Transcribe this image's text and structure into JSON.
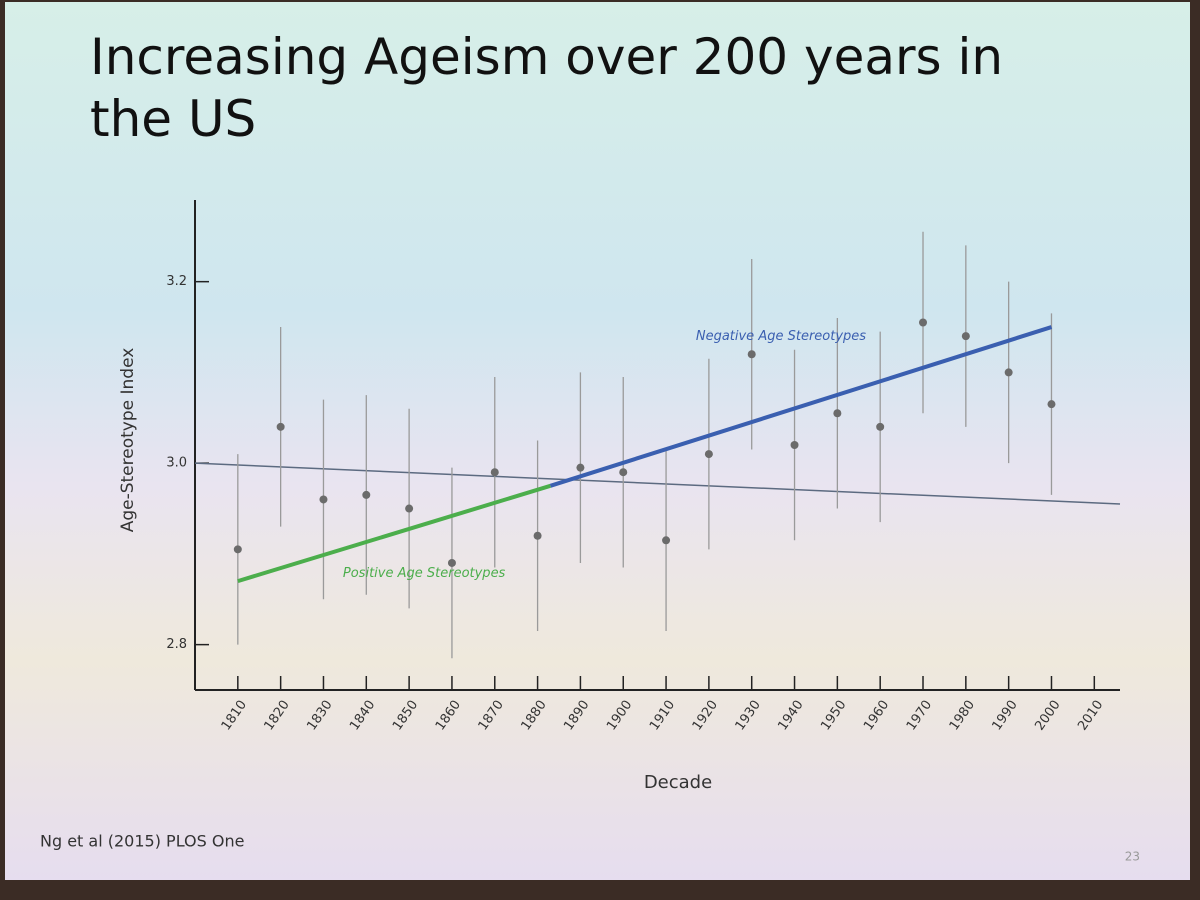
{
  "slide": {
    "title": "Increasing Ageism over 200 years in the US",
    "source": "Ng et al (2015) PLOS One",
    "page_number": 23
  },
  "chart_data": {
    "type": "errorbar-scatter",
    "x_label": "Decade",
    "y_label": "Age-Stereotype Index",
    "x": [
      1810,
      1820,
      1830,
      1840,
      1850,
      1860,
      1870,
      1880,
      1890,
      1900,
      1910,
      1920,
      1930,
      1940,
      1950,
      1960,
      1970,
      1980,
      1990,
      2000
    ],
    "values": [
      2.905,
      3.04,
      2.96,
      2.965,
      2.95,
      2.89,
      2.99,
      2.92,
      2.995,
      2.99,
      2.915,
      3.01,
      3.12,
      3.02,
      3.055,
      3.04,
      3.155,
      3.14,
      3.1,
      3.065
    ],
    "errors": [
      0.105,
      0.11,
      0.11,
      0.11,
      0.11,
      0.105,
      0.105,
      0.105,
      0.105,
      0.105,
      0.1,
      0.105,
      0.105,
      0.105,
      0.105,
      0.105,
      0.1,
      0.1,
      0.1,
      0.1
    ],
    "color": "#6b6b6b",
    "trends": [
      {
        "name": "Positive Age Stereotypes",
        "color": "#4cae4c",
        "x": [
          1810,
          1883
        ],
        "values": [
          2.87,
          2.975
        ]
      },
      {
        "name": "Negative Age Stereotypes",
        "color": "#3a5fb0",
        "x": [
          1883,
          2000
        ],
        "values": [
          2.975,
          3.15
        ]
      }
    ],
    "reference_line": {
      "x": [
        1810,
        2016
      ],
      "values": [
        3.0,
        2.955
      ],
      "color": "#5c6a80"
    },
    "xlim": [
      1800,
      2016
    ],
    "ylim": [
      2.75,
      3.29
    ],
    "xticks": [
      1810,
      1820,
      1830,
      1840,
      1850,
      1860,
      1870,
      1880,
      1890,
      1900,
      1910,
      1920,
      1930,
      1940,
      1950,
      1960,
      1970,
      1980,
      1990,
      2000,
      2010
    ],
    "yticks": [
      2.8,
      {
        "value": 3,
        "label": "3.0"
      },
      3.2
    ]
  }
}
